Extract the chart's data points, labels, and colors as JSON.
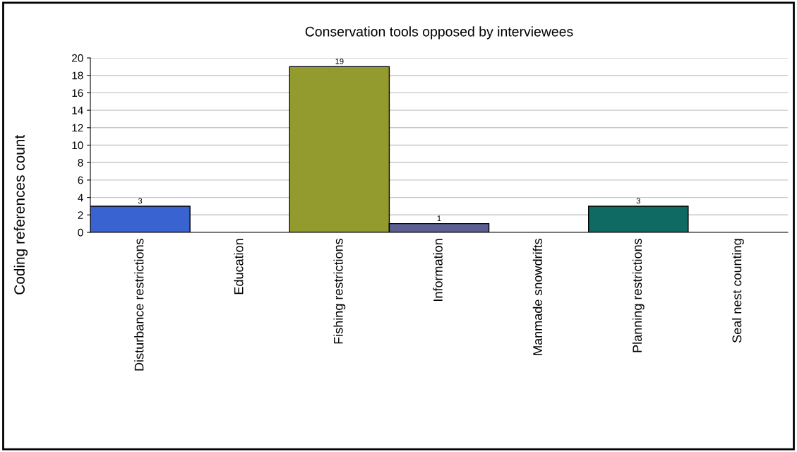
{
  "chart_data": {
    "type": "bar",
    "title": "Conservation tools opposed by interviewees",
    "ylabel": "Coding references count",
    "categories": [
      "Disturbance restrictions",
      "Education",
      "Fishing restrictions",
      "Information",
      "Manmade snowdrifts",
      "Planning restrictions",
      "Seal nest counting"
    ],
    "values": [
      3,
      0,
      19,
      1,
      0,
      3,
      0
    ],
    "colors": [
      "#3a63d2",
      null,
      "#939a2e",
      "#5b5f92",
      null,
      "#0e6a62",
      null
    ],
    "value_labels": [
      "3",
      null,
      "19",
      "1",
      null,
      "3",
      null
    ],
    "ylim": [
      0,
      20
    ],
    "yticks": [
      0,
      2,
      4,
      6,
      8,
      10,
      12,
      14,
      16,
      18,
      20
    ],
    "grid": "y",
    "legend": false
  }
}
